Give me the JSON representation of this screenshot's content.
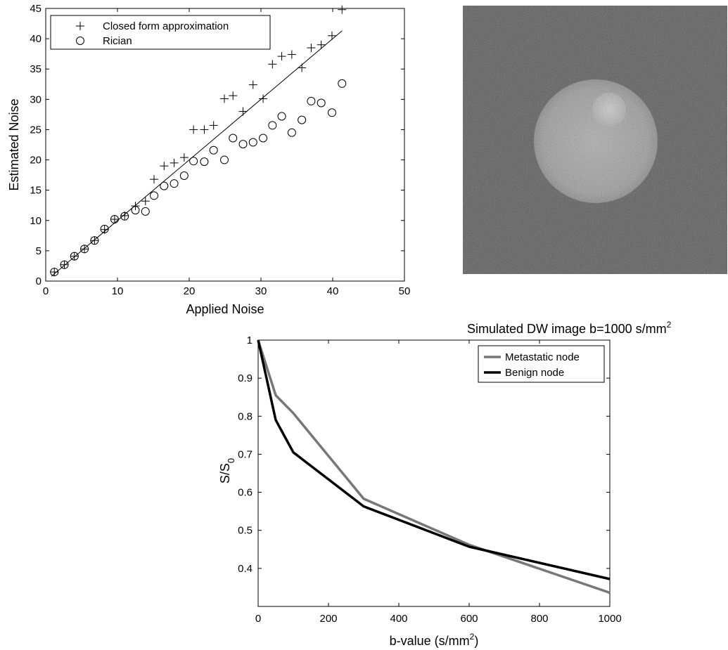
{
  "chart_data": [
    {
      "type": "scatter",
      "xlabel": "Applied Noise",
      "ylabel": "Estimated Noise",
      "xlim": [
        0,
        50
      ],
      "ylim": [
        0,
        45
      ],
      "xticks": [
        0,
        10,
        20,
        30,
        40,
        50
      ],
      "yticks": [
        0,
        5,
        10,
        15,
        20,
        25,
        30,
        35,
        40,
        45
      ],
      "legend_position": "top-left",
      "series": [
        {
          "name": "Closed form approximation",
          "marker": "plus",
          "x": [
            1.2,
            2.6,
            4.0,
            5.4,
            6.8,
            8.2,
            9.6,
            11.0,
            12.5,
            13.9,
            15.1,
            16.5,
            17.9,
            19.3,
            20.6,
            22.1,
            23.4,
            24.9,
            26.1,
            27.5,
            28.9,
            30.3,
            31.6,
            32.9,
            34.3,
            35.7,
            37.0,
            38.4,
            39.9,
            41.3
          ],
          "y": [
            1.5,
            2.7,
            4.1,
            5.3,
            6.7,
            8.5,
            10.2,
            10.8,
            12.4,
            13.2,
            16.8,
            19.0,
            19.5,
            20.4,
            25.0,
            25.0,
            25.7,
            30.1,
            30.6,
            28.0,
            32.4,
            30.1,
            35.8,
            37.1,
            37.4,
            35.2,
            38.5,
            39.0,
            40.5,
            44.8
          ]
        },
        {
          "name": "Rician",
          "marker": "circle",
          "x": [
            1.2,
            2.6,
            4.0,
            5.4,
            6.8,
            8.2,
            9.6,
            11.0,
            12.5,
            13.9,
            15.1,
            16.5,
            17.9,
            19.3,
            20.6,
            22.1,
            23.4,
            24.9,
            26.1,
            27.5,
            28.9,
            30.3,
            31.6,
            32.9,
            34.3,
            35.7,
            37.0,
            38.4,
            39.9,
            41.3
          ],
          "y": [
            1.5,
            2.7,
            4.1,
            5.3,
            6.7,
            8.6,
            10.2,
            10.7,
            11.7,
            11.5,
            14.1,
            15.7,
            16.1,
            17.4,
            19.8,
            19.7,
            21.6,
            20.0,
            23.6,
            22.6,
            22.9,
            23.6,
            25.7,
            27.2,
            24.5,
            26.6,
            29.7,
            29.4,
            27.8,
            32.6
          ]
        },
        {
          "name": "",
          "marker": "line",
          "x": [
            0.8,
            41.3
          ],
          "y": [
            0.8,
            41.3
          ]
        }
      ]
    },
    {
      "type": "line",
      "xlabel": "b-value (s/mm2)",
      "ylabel": "S/S0",
      "xlim": [
        0,
        1000
      ],
      "ylim": [
        0.3,
        1.0
      ],
      "xticks": [
        0,
        200,
        400,
        600,
        800,
        1000
      ],
      "yticks": [
        0.4,
        0.5,
        0.6,
        0.7,
        0.8,
        0.9,
        1.0
      ],
      "legend_position": "top-right",
      "series": [
        {
          "name": "Metastatic node",
          "color": "#777777",
          "x": [
            0,
            50,
            100,
            300,
            600,
            1000
          ],
          "y": [
            1.0,
            0.855,
            0.808,
            0.583,
            0.462,
            0.336
          ]
        },
        {
          "name": "Benign node",
          "color": "#000000",
          "x": [
            0,
            50,
            100,
            300,
            600,
            1000
          ],
          "y": [
            1.0,
            0.79,
            0.705,
            0.563,
            0.457,
            0.372
          ]
        }
      ]
    }
  ],
  "image_panel": {
    "caption": "Simulated DW image b=1000 s/mm",
    "caption_sup": "2"
  },
  "axis_label_parts": {
    "b_value_prefix": "b-value (s/mm",
    "b_value_sup": "2",
    "b_value_suffix": ")",
    "ratio_main": "S/S",
    "ratio_sub": "0"
  }
}
